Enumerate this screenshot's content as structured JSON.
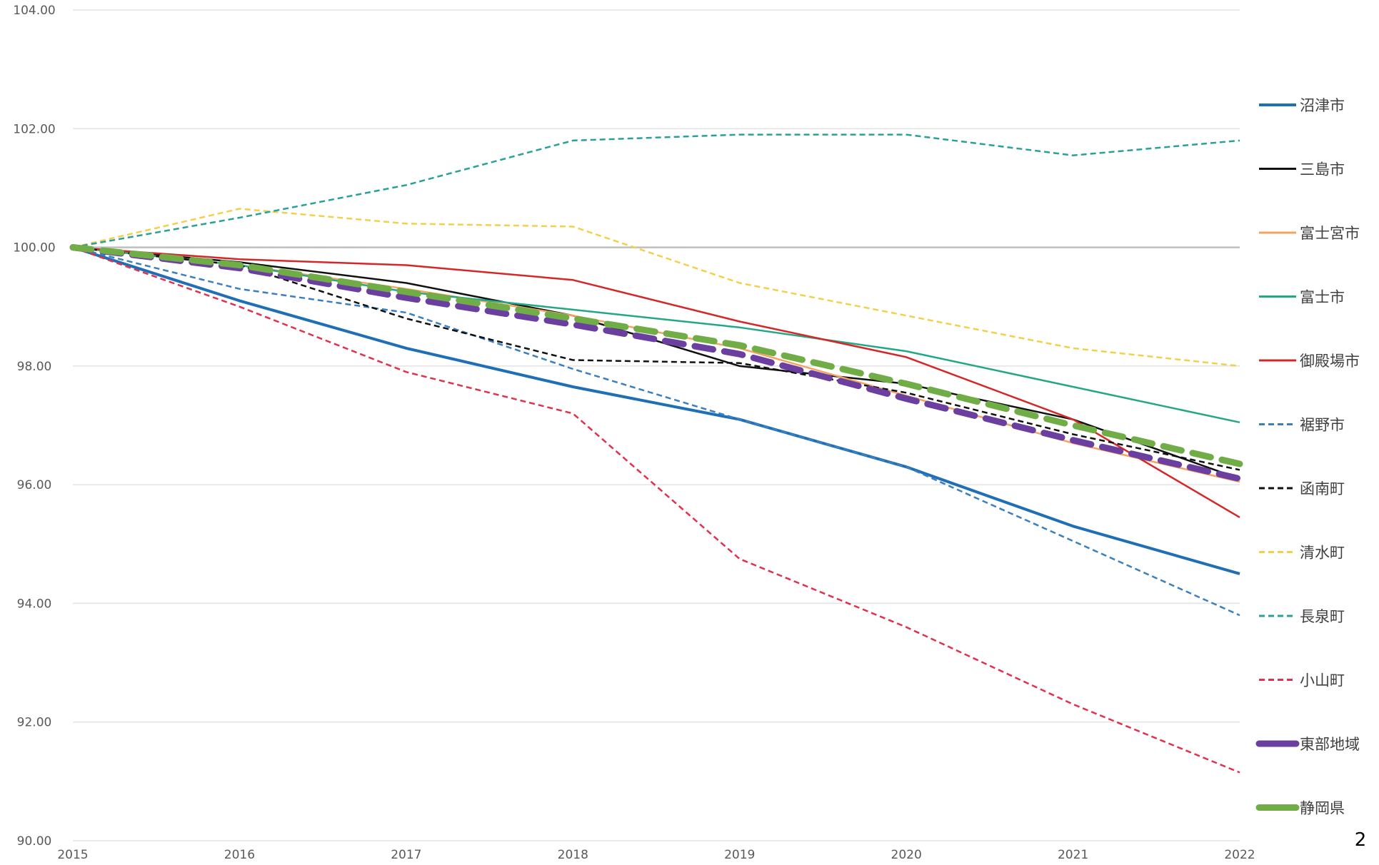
{
  "page_number": "2",
  "chart_data": {
    "type": "line",
    "title": "",
    "xlabel": "",
    "ylabel": "",
    "x": [
      2015,
      2016,
      2017,
      2018,
      2019,
      2020,
      2021,
      2022
    ],
    "x_tick_labels": [
      "2015",
      "2016",
      "2017",
      "2018",
      "2019",
      "2020",
      "2021",
      "2022"
    ],
    "ylim": [
      90,
      104
    ],
    "y_ticks": [
      90,
      92,
      94,
      96,
      98,
      100,
      102,
      104
    ],
    "y_tick_labels": [
      "90.00",
      "92.00",
      "94.00",
      "96.00",
      "98.00",
      "100.00",
      "102.00",
      "104.00"
    ],
    "reference_line": 100,
    "grid": "horizontal",
    "legend_position": "right",
    "series": [
      {
        "name": "沼津市",
        "color": "#1f6fb6",
        "style": "solid",
        "weight": "medium",
        "values": [
          100.0,
          99.1,
          98.3,
          97.65,
          97.1,
          96.3,
          95.3,
          94.5
        ]
      },
      {
        "name": "三島市",
        "color": "#111111",
        "style": "solid",
        "weight": "thin",
        "values": [
          100.0,
          99.75,
          99.4,
          98.85,
          98.0,
          97.7,
          97.1,
          96.1
        ]
      },
      {
        "name": "富士宮市",
        "color": "#f4a460",
        "style": "solid",
        "weight": "thin",
        "values": [
          100.0,
          99.7,
          99.3,
          98.85,
          98.3,
          97.5,
          96.7,
          96.05
        ]
      },
      {
        "name": "富士市",
        "color": "#22a884",
        "style": "solid",
        "weight": "thin",
        "values": [
          100.0,
          99.7,
          99.25,
          98.95,
          98.65,
          98.25,
          97.65,
          97.05
        ]
      },
      {
        "name": "御殿場市",
        "color": "#d62728",
        "style": "solid",
        "weight": "thin",
        "values": [
          100.0,
          99.8,
          99.7,
          99.45,
          98.75,
          98.15,
          97.1,
          95.45
        ]
      },
      {
        "name": "裾野市",
        "color": "#3a7fbf",
        "style": "dashed",
        "weight": "thin",
        "values": [
          100.0,
          99.3,
          98.9,
          97.95,
          97.1,
          96.3,
          95.05,
          93.8
        ]
      },
      {
        "name": "函南町",
        "color": "#111111",
        "style": "dashed",
        "weight": "thin",
        "values": [
          100.0,
          99.7,
          98.8,
          98.1,
          98.05,
          97.55,
          96.85,
          96.25
        ]
      },
      {
        "name": "清水町",
        "color": "#f2d14a",
        "style": "dashed",
        "weight": "thin",
        "values": [
          100.0,
          100.65,
          100.4,
          100.35,
          99.4,
          98.85,
          98.3,
          98.0
        ]
      },
      {
        "name": "長泉町",
        "color": "#2aa198",
        "style": "dashed",
        "weight": "thin",
        "values": [
          100.0,
          100.5,
          101.05,
          101.8,
          101.9,
          101.9,
          101.55,
          101.8
        ]
      },
      {
        "name": "小山町",
        "color": "#e0324f",
        "style": "dashed",
        "weight": "thin",
        "values": [
          100.0,
          99.0,
          97.9,
          97.2,
          94.75,
          93.6,
          92.3,
          91.15
        ]
      },
      {
        "name": "東部地域",
        "color": "#6b3fa0",
        "style": "dashed",
        "weight": "thick",
        "values": [
          100.0,
          99.65,
          99.15,
          98.7,
          98.2,
          97.45,
          96.75,
          96.1
        ]
      },
      {
        "name": "静岡県",
        "color": "#70ad47",
        "style": "dashed",
        "weight": "thick",
        "values": [
          100.0,
          99.7,
          99.25,
          98.8,
          98.35,
          97.7,
          97.0,
          96.35
        ]
      }
    ]
  }
}
